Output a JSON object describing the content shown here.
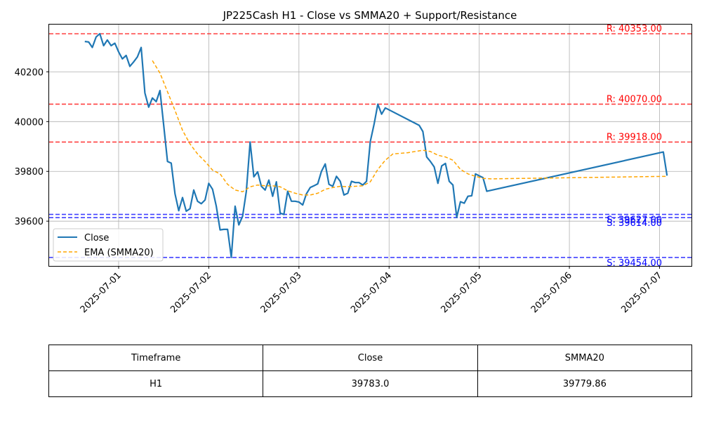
{
  "chart_data": {
    "type": "line",
    "title": "JP225Cash H1 - Close vs SMMA20 + Support/Resistance",
    "xlabel": "",
    "ylabel": "",
    "x_ticks": [
      "2025-07-01",
      "2025-07-02",
      "2025-07-03",
      "2025-07-04",
      "2025-07-05",
      "2025-07-06",
      "2025-07-07"
    ],
    "y_ticks": [
      39600,
      39800,
      40000,
      40200
    ],
    "ylim": [
      39420,
      40390
    ],
    "xlim_days": [
      "2025-06-30T05:30",
      "2025-07-07T08:30"
    ],
    "grid": true,
    "legend_position": "lower-left",
    "series": [
      {
        "name": "Close",
        "color": "#1f77b4",
        "style": "solid",
        "points": [
          [
            "2025-06-30T15:00",
            40322
          ],
          [
            "2025-06-30T16:00",
            40320
          ],
          [
            "2025-06-30T17:00",
            40298
          ],
          [
            "2025-06-30T18:00",
            40340
          ],
          [
            "2025-06-30T19:00",
            40353
          ],
          [
            "2025-06-30T20:00",
            40305
          ],
          [
            "2025-06-30T21:00",
            40328
          ],
          [
            "2025-06-30T22:00",
            40305
          ],
          [
            "2025-06-30T23:00",
            40315
          ],
          [
            "2025-07-01T00:00",
            40280
          ],
          [
            "2025-07-01T01:00",
            40252
          ],
          [
            "2025-07-01T02:00",
            40266
          ],
          [
            "2025-07-01T03:00",
            40222
          ],
          [
            "2025-07-01T04:00",
            40240
          ],
          [
            "2025-07-01T05:00",
            40260
          ],
          [
            "2025-07-01T06:00",
            40298
          ],
          [
            "2025-07-01T07:00",
            40115
          ],
          [
            "2025-07-01T08:00",
            40058
          ],
          [
            "2025-07-01T09:00",
            40095
          ],
          [
            "2025-07-01T10:00",
            40080
          ],
          [
            "2025-07-01T11:00",
            40125
          ],
          [
            "2025-07-01T12:00",
            39985
          ],
          [
            "2025-07-01T13:00",
            39840
          ],
          [
            "2025-07-01T14:00",
            39833
          ],
          [
            "2025-07-01T15:00",
            39710
          ],
          [
            "2025-07-01T16:00",
            39642
          ],
          [
            "2025-07-01T17:00",
            39695
          ],
          [
            "2025-07-01T18:00",
            39640
          ],
          [
            "2025-07-01T19:00",
            39650
          ],
          [
            "2025-07-01T20:00",
            39725
          ],
          [
            "2025-07-01T21:00",
            39680
          ],
          [
            "2025-07-01T22:00",
            39670
          ],
          [
            "2025-07-01T23:00",
            39685
          ],
          [
            "2025-07-02T00:00",
            39752
          ],
          [
            "2025-07-02T01:00",
            39728
          ],
          [
            "2025-07-02T02:00",
            39660
          ],
          [
            "2025-07-02T03:00",
            39565
          ],
          [
            "2025-07-02T04:00",
            39567
          ],
          [
            "2025-07-02T05:00",
            39567
          ],
          [
            "2025-07-02T06:00",
            39454
          ],
          [
            "2025-07-02T07:00",
            39660
          ],
          [
            "2025-07-02T08:00",
            39585
          ],
          [
            "2025-07-02T09:00",
            39620
          ],
          [
            "2025-07-02T10:00",
            39720
          ],
          [
            "2025-07-02T11:00",
            39918
          ],
          [
            "2025-07-02T12:00",
            39778
          ],
          [
            "2025-07-02T13:00",
            39798
          ],
          [
            "2025-07-02T14:00",
            39740
          ],
          [
            "2025-07-02T15:00",
            39725
          ],
          [
            "2025-07-02T16:00",
            39765
          ],
          [
            "2025-07-02T17:00",
            39700
          ],
          [
            "2025-07-02T18:00",
            39758
          ],
          [
            "2025-07-02T19:00",
            39632
          ],
          [
            "2025-07-02T20:00",
            39627
          ],
          [
            "2025-07-02T21:00",
            39720
          ],
          [
            "2025-07-02T22:00",
            39680
          ],
          [
            "2025-07-02T23:00",
            39680
          ],
          [
            "2025-07-03T00:00",
            39677
          ],
          [
            "2025-07-03T01:00",
            39665
          ],
          [
            "2025-07-03T02:00",
            39710
          ],
          [
            "2025-07-03T03:00",
            39735
          ],
          [
            "2025-07-03T04:00",
            39742
          ],
          [
            "2025-07-03T05:00",
            39750
          ],
          [
            "2025-07-03T06:00",
            39800
          ],
          [
            "2025-07-03T07:00",
            39830
          ],
          [
            "2025-07-03T08:00",
            39748
          ],
          [
            "2025-07-03T09:00",
            39740
          ],
          [
            "2025-07-03T10:00",
            39780
          ],
          [
            "2025-07-03T11:00",
            39760
          ],
          [
            "2025-07-03T12:00",
            39705
          ],
          [
            "2025-07-03T13:00",
            39712
          ],
          [
            "2025-07-03T14:00",
            39760
          ],
          [
            "2025-07-03T15:00",
            39755
          ],
          [
            "2025-07-03T16:00",
            39755
          ],
          [
            "2025-07-03T17:00",
            39745
          ],
          [
            "2025-07-03T18:00",
            39760
          ],
          [
            "2025-07-03T19:00",
            39920
          ],
          [
            "2025-07-03T20:00",
            39990
          ],
          [
            "2025-07-03T21:00",
            40070
          ],
          [
            "2025-07-03T22:00",
            40030
          ],
          [
            "2025-07-03T23:00",
            40055
          ],
          [
            "2025-07-04T08:00",
            39985
          ],
          [
            "2025-07-04T09:00",
            39960
          ],
          [
            "2025-07-04T10:00",
            39858
          ],
          [
            "2025-07-04T11:00",
            39840
          ],
          [
            "2025-07-04T12:00",
            39818
          ],
          [
            "2025-07-04T13:00",
            39752
          ],
          [
            "2025-07-04T14:00",
            39822
          ],
          [
            "2025-07-04T15:00",
            39832
          ],
          [
            "2025-07-04T16:00",
            39760
          ],
          [
            "2025-07-04T17:00",
            39745
          ],
          [
            "2025-07-04T18:00",
            39615
          ],
          [
            "2025-07-04T19:00",
            39678
          ],
          [
            "2025-07-04T20:00",
            39672
          ],
          [
            "2025-07-04T21:00",
            39700
          ],
          [
            "2025-07-04T22:00",
            39702
          ],
          [
            "2025-07-04T23:00",
            39790
          ],
          [
            "2025-07-05T00:00",
            39782
          ],
          [
            "2025-07-05T01:00",
            39775
          ],
          [
            "2025-07-05T02:00",
            39720
          ],
          [
            "2025-07-07T01:00",
            39878
          ],
          [
            "2025-07-07T02:00",
            39783
          ]
        ]
      },
      {
        "name": "EMA (SMMA20)",
        "color": "#ffa500",
        "style": "dashed",
        "points": [
          [
            "2025-07-01T09:00",
            40245
          ],
          [
            "2025-07-01T11:00",
            40195
          ],
          [
            "2025-07-01T13:00",
            40120
          ],
          [
            "2025-07-01T15:00",
            40045
          ],
          [
            "2025-07-01T17:00",
            39965
          ],
          [
            "2025-07-01T19:00",
            39910
          ],
          [
            "2025-07-01T21:00",
            39870
          ],
          [
            "2025-07-01T23:00",
            39840
          ],
          [
            "2025-07-02T01:00",
            39805
          ],
          [
            "2025-07-02T03:00",
            39790
          ],
          [
            "2025-07-02T05:00",
            39748
          ],
          [
            "2025-07-02T07:00",
            39725
          ],
          [
            "2025-07-02T09:00",
            39718
          ],
          [
            "2025-07-02T11:00",
            39738
          ],
          [
            "2025-07-02T13:00",
            39745
          ],
          [
            "2025-07-02T15:00",
            39742
          ],
          [
            "2025-07-02T17:00",
            39742
          ],
          [
            "2025-07-02T19:00",
            39738
          ],
          [
            "2025-07-02T21:00",
            39722
          ],
          [
            "2025-07-02T23:00",
            39712
          ],
          [
            "2025-07-03T01:00",
            39705
          ],
          [
            "2025-07-03T03:00",
            39705
          ],
          [
            "2025-07-03T05:00",
            39712
          ],
          [
            "2025-07-03T07:00",
            39728
          ],
          [
            "2025-07-03T09:00",
            39735
          ],
          [
            "2025-07-03T11:00",
            39740
          ],
          [
            "2025-07-03T13:00",
            39738
          ],
          [
            "2025-07-03T15:00",
            39740
          ],
          [
            "2025-07-03T17:00",
            39742
          ],
          [
            "2025-07-03T19:00",
            39758
          ],
          [
            "2025-07-03T21:00",
            39808
          ],
          [
            "2025-07-03T23:00",
            39845
          ],
          [
            "2025-07-04T01:00",
            39870
          ],
          [
            "2025-07-04T05:00",
            39875
          ],
          [
            "2025-07-04T09:00",
            39885
          ],
          [
            "2025-07-04T11:00",
            39880
          ],
          [
            "2025-07-04T13:00",
            39865
          ],
          [
            "2025-07-04T15:00",
            39858
          ],
          [
            "2025-07-04T17:00",
            39845
          ],
          [
            "2025-07-04T19:00",
            39808
          ],
          [
            "2025-07-04T21:00",
            39790
          ],
          [
            "2025-07-04T23:00",
            39780
          ],
          [
            "2025-07-05T01:00",
            39772
          ],
          [
            "2025-07-05T03:00",
            39770
          ],
          [
            "2025-07-07T02:00",
            39780
          ]
        ]
      }
    ],
    "levels": [
      {
        "kind": "resistance",
        "value": 40353,
        "label": "R: 40353.00",
        "color": "#ff0000"
      },
      {
        "kind": "resistance",
        "value": 40070,
        "label": "R: 40070.00",
        "color": "#ff0000"
      },
      {
        "kind": "resistance",
        "value": 39918,
        "label": "R: 39918.00",
        "color": "#ff0000"
      },
      {
        "kind": "support",
        "value": 39627,
        "label": "S: 39627.00",
        "color": "#0000ff"
      },
      {
        "kind": "support",
        "value": 39614,
        "label": "S: 39614.00",
        "color": "#0000ff"
      },
      {
        "kind": "support",
        "value": 39454,
        "label": "S: 39454.00",
        "color": "#0000ff"
      }
    ]
  },
  "table": {
    "headers": [
      "Timeframe",
      "Close",
      "SMMA20"
    ],
    "rows": [
      [
        "H1",
        "39783.0",
        "39779.86"
      ]
    ]
  }
}
